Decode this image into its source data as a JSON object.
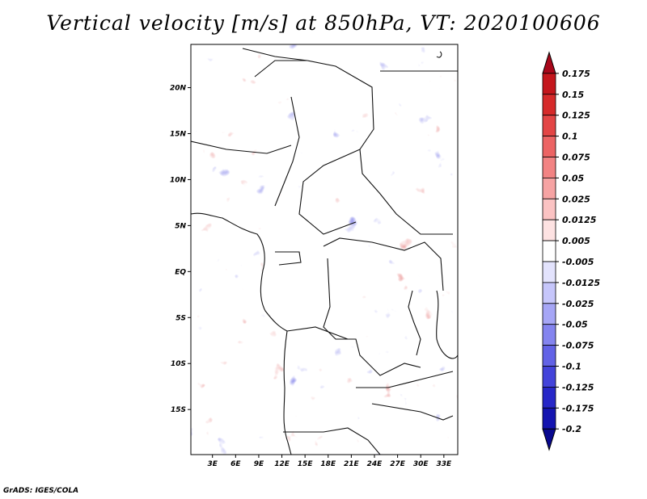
{
  "chart_data": {
    "type": "heatmap",
    "title": "Vertical velocity [m/s] at 850hPa, VT: 2020100606",
    "x_ticks": [
      "3E",
      "6E",
      "9E",
      "12E",
      "15E",
      "18E",
      "21E",
      "24E",
      "27E",
      "30E",
      "33E"
    ],
    "x_tick_values": [
      3,
      6,
      9,
      12,
      15,
      18,
      21,
      24,
      27,
      30,
      33
    ],
    "y_ticks": [
      "20N",
      "15N",
      "10N",
      "5N",
      "EQ",
      "5S",
      "10S",
      "15S"
    ],
    "y_tick_values": [
      20,
      15,
      10,
      5,
      0,
      -5,
      -10,
      -15
    ],
    "xlim": [
      0.2,
      34.8
    ],
    "ylim": [
      -19.9,
      24.7
    ],
    "colorbar": {
      "levels": [
        "0.175",
        "0.15",
        "0.125",
        "0.1",
        "0.075",
        "0.05",
        "0.025",
        "0.0125",
        "0.005",
        "-0.005",
        "-0.0125",
        "-0.025",
        "-0.05",
        "-0.075",
        "-0.1",
        "-0.125",
        "-0.175",
        "-0.2"
      ],
      "colors": [
        "#a8071a",
        "#c4161c",
        "#d62a2a",
        "#e34545",
        "#ec6464",
        "#f28383",
        "#f6a3a3",
        "#fbc3c3",
        "#fde2e2",
        "#ffffff",
        "#e3e3fd",
        "#c6c6fb",
        "#a6a6f6",
        "#8484ef",
        "#6262e6",
        "#4343da",
        "#2727c8",
        "#1414b0",
        "#08088f"
      ]
    }
  },
  "credit": "GrADS: IGES/COLA"
}
